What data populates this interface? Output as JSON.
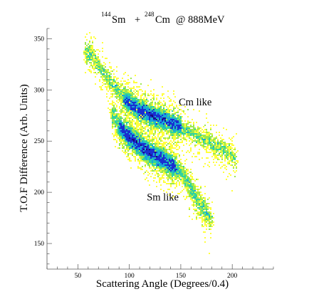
{
  "chart_data": {
    "type": "heatmap",
    "title_parts": {
      "a_sup": "144",
      "a_el": "Sm",
      "plus": "+",
      "b_sup": "248",
      "b_el": "Cm",
      "rest": "@ 888MeV"
    },
    "xlabel": "Scattering Angle (Degrees/0.4)",
    "ylabel": "T.O.F Difference (Arb. Units)",
    "xlim": [
      20,
      240
    ],
    "ylim": [
      125,
      360
    ],
    "xticks": [
      50,
      100,
      150,
      200
    ],
    "yticks": [
      150,
      200,
      250,
      300,
      350
    ],
    "grid": false,
    "annotations": [
      {
        "text": "Cm like",
        "x": 148,
        "y": 285
      },
      {
        "text": "Sm like",
        "x": 117,
        "y": 192
      }
    ],
    "series": [
      {
        "ridge": [
          [
            57,
            338
          ],
          [
            65,
            332
          ],
          [
            72,
            321
          ],
          [
            80,
            310
          ],
          [
            90,
            298
          ],
          [
            100,
            287
          ],
          [
            110,
            280
          ],
          [
            120,
            276
          ],
          [
            130,
            272
          ],
          [
            140,
            268
          ],
          [
            150,
            264
          ],
          [
            160,
            259
          ],
          [
            170,
            253
          ],
          [
            180,
            248
          ],
          [
            190,
            243
          ],
          [
            200,
            236
          ],
          [
            204,
            230
          ]
        ],
        "width": 4.5,
        "core_x": [
          95,
          150
        ],
        "peak_x": [
          115,
          140
        ]
      },
      {
        "ridge": [
          [
            83,
            280
          ],
          [
            86,
            272
          ],
          [
            90,
            265
          ],
          [
            96,
            258
          ],
          [
            105,
            250
          ],
          [
            115,
            242
          ],
          [
            125,
            236
          ],
          [
            135,
            230
          ],
          [
            145,
            224
          ],
          [
            150,
            220
          ],
          [
            155,
            214
          ],
          [
            160,
            204
          ],
          [
            165,
            195
          ],
          [
            170,
            187
          ],
          [
            175,
            180
          ],
          [
            180,
            172
          ]
        ],
        "width": 4.8,
        "core_x": [
          90,
          145
        ],
        "peak_x": [
          100,
          130
        ]
      }
    ],
    "colors": {
      "low": "#ffff3c",
      "mid_low": "#9be84e",
      "mid": "#2fd2a0",
      "mid_high": "#19a7d8",
      "high": "#1a2fd0",
      "peak": "#1c0a7a"
    }
  }
}
